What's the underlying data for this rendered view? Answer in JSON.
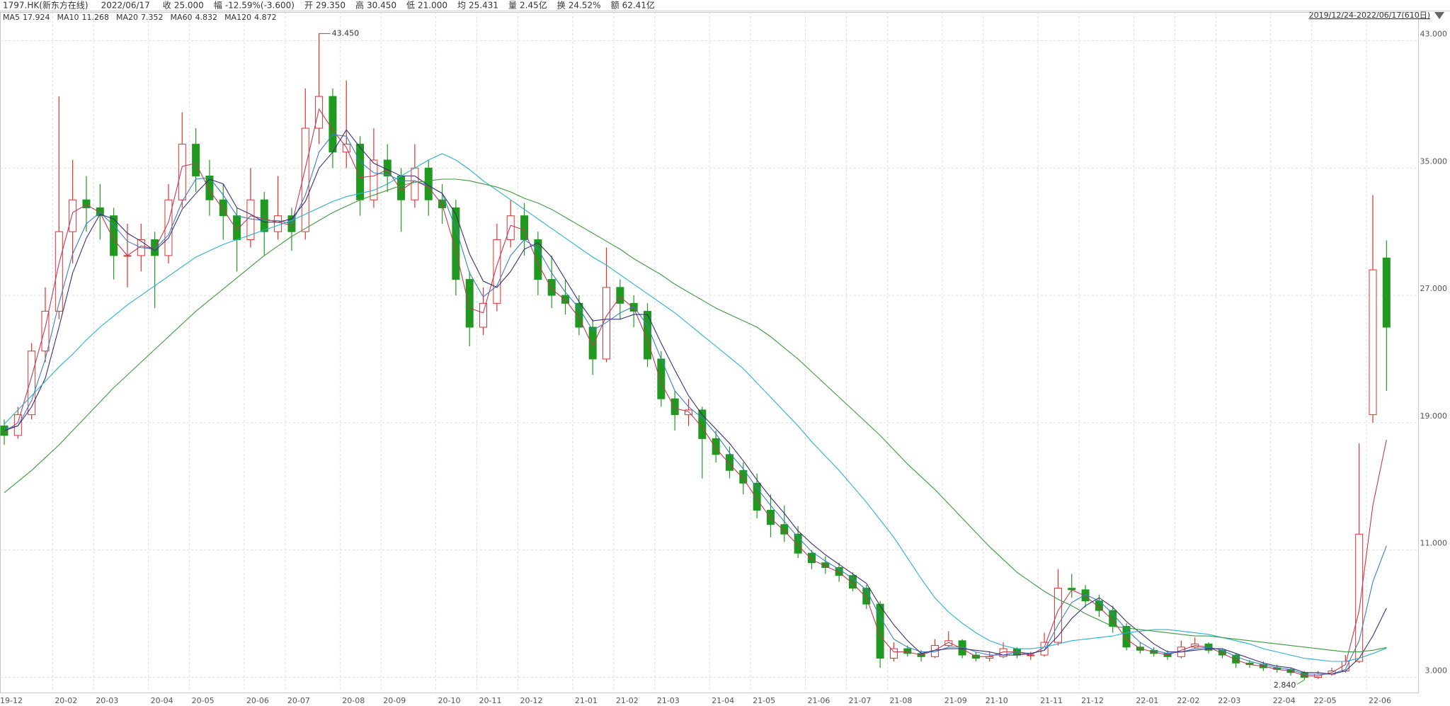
{
  "header": {
    "code": "1797.HK(新东方在线)",
    "date": "2022/06/17",
    "items": [
      {
        "label": "收",
        "value": "25.000",
        "color": "#1a9a1a"
      },
      {
        "label": "幅",
        "value": "-12.59%(-3.600)",
        "color": "#1a9a1a"
      },
      {
        "label": "开",
        "value": "29.350",
        "color": "#d0302a"
      },
      {
        "label": "高",
        "value": "30.450",
        "color": "#d0302a"
      },
      {
        "label": "低",
        "value": "21.000",
        "color": "#1a9a1a"
      },
      {
        "label": "均",
        "value": "25.431",
        "color": "#1a9a1a"
      },
      {
        "label": "量",
        "value": "2.45亿",
        "color": "#333333"
      },
      {
        "label": "换",
        "value": "24.52%",
        "color": "#333333"
      },
      {
        "label": "额",
        "value": "62.41亿",
        "color": "#333333"
      }
    ],
    "range": "2019/12/24-2022/06/17(610日)"
  },
  "chart_data": {
    "type": "candlestick",
    "up_color": "#e0302c",
    "down_color": "#1f9a1f",
    "grid": true,
    "ylim": [
      2,
      44.8
    ],
    "yticks": [
      {
        "value": 3,
        "label": "3.000"
      },
      {
        "value": 11,
        "label": "11.000"
      },
      {
        "value": 19,
        "label": "19.000"
      },
      {
        "value": 27,
        "label": "27.000"
      },
      {
        "value": 35,
        "label": "35.000"
      },
      {
        "value": 43,
        "label": "43.000"
      }
    ],
    "x": [
      "19-12",
      null,
      null,
      null,
      "20-02",
      null,
      null,
      "20-03",
      null,
      null,
      null,
      "20-04",
      null,
      null,
      "20-05",
      null,
      null,
      null,
      "20-06",
      null,
      null,
      "20-07",
      null,
      null,
      null,
      "20-08",
      null,
      null,
      "20-09",
      null,
      null,
      null,
      "20-10",
      null,
      null,
      "20-11",
      null,
      null,
      "20-12",
      null,
      null,
      null,
      "21-01",
      null,
      null,
      "21-02",
      null,
      null,
      "21-03",
      null,
      null,
      null,
      "21-04",
      null,
      null,
      "21-05",
      null,
      null,
      null,
      "21-06",
      null,
      null,
      "21-07",
      null,
      null,
      "21-08",
      null,
      null,
      null,
      "21-09",
      null,
      null,
      "21-10",
      null,
      null,
      null,
      "21-11",
      null,
      null,
      "21-12",
      null,
      null,
      null,
      "22-01",
      null,
      null,
      "22-02",
      null,
      null,
      "22-03",
      null,
      null,
      null,
      "22-04",
      null,
      null,
      "22-05",
      null,
      null,
      null,
      "22-06",
      null
    ],
    "ohlc": [
      [
        18.8,
        19.2,
        17.6,
        18.2
      ],
      [
        18.2,
        20.0,
        18.0,
        19.5
      ],
      [
        19.5,
        24.0,
        19.2,
        23.5
      ],
      [
        23.5,
        27.5,
        22.8,
        26.0
      ],
      [
        26.0,
        39.5,
        25.5,
        31.0
      ],
      [
        31.0,
        35.5,
        29.0,
        33.0
      ],
      [
        33.0,
        34.5,
        31.0,
        32.5
      ],
      [
        32.5,
        34.0,
        30.5,
        32.0
      ],
      [
        32.0,
        32.5,
        28.0,
        29.5
      ],
      [
        29.5,
        31.5,
        27.5,
        29.5
      ],
      [
        29.5,
        31.5,
        28.5,
        30.5
      ],
      [
        30.5,
        31.0,
        26.2,
        29.5
      ],
      [
        29.5,
        34.0,
        29.0,
        33.0
      ],
      [
        33.0,
        38.5,
        32.5,
        36.5
      ],
      [
        36.5,
        37.5,
        33.5,
        34.5
      ],
      [
        34.5,
        35.5,
        32.0,
        33.0
      ],
      [
        33.0,
        34.0,
        30.5,
        32.0
      ],
      [
        32.0,
        32.5,
        28.5,
        30.5
      ],
      [
        30.5,
        35.0,
        30.0,
        33.0
      ],
      [
        33.0,
        33.5,
        29.5,
        31.0
      ],
      [
        31.0,
        34.5,
        30.5,
        32.0
      ],
      [
        32.0,
        32.5,
        29.8,
        31.0
      ],
      [
        31.0,
        40.0,
        30.5,
        37.5
      ],
      [
        37.5,
        43.45,
        36.5,
        39.5
      ],
      [
        39.5,
        40.0,
        35.0,
        36.0
      ],
      [
        36.0,
        40.5,
        35.0,
        36.5
      ],
      [
        36.5,
        37.0,
        32.0,
        33.0
      ],
      [
        33.0,
        37.5,
        32.5,
        35.5
      ],
      [
        35.5,
        36.5,
        33.5,
        34.5
      ],
      [
        34.5,
        35.0,
        31.0,
        33.0
      ],
      [
        33.0,
        36.5,
        32.5,
        35.0
      ],
      [
        35.0,
        35.5,
        32.0,
        33.0
      ],
      [
        33.0,
        34.0,
        31.5,
        32.5
      ],
      [
        32.5,
        33.0,
        27.0,
        28.0
      ],
      [
        28.0,
        28.5,
        23.8,
        25.0
      ],
      [
        25.0,
        27.5,
        24.5,
        26.5
      ],
      [
        26.5,
        31.5,
        26.0,
        30.5
      ],
      [
        30.5,
        33.0,
        30.0,
        32.0
      ],
      [
        32.0,
        32.8,
        29.5,
        30.5
      ],
      [
        30.5,
        31.0,
        27.0,
        28.0
      ],
      [
        28.0,
        29.5,
        26.2,
        27.0
      ],
      [
        27.0,
        28.0,
        25.8,
        26.5
      ],
      [
        26.5,
        27.0,
        24.5,
        25.0
      ],
      [
        25.0,
        25.5,
        22.0,
        23.0
      ],
      [
        23.0,
        30.0,
        22.8,
        27.5
      ],
      [
        27.5,
        28.0,
        25.5,
        26.5
      ],
      [
        26.5,
        27.0,
        25.0,
        26.0
      ],
      [
        26.0,
        26.5,
        22.5,
        23.0
      ],
      [
        23.0,
        23.5,
        20.0,
        20.5
      ],
      [
        20.5,
        21.0,
        18.5,
        19.5
      ],
      [
        19.5,
        20.5,
        18.8,
        19.8
      ],
      [
        19.8,
        20.0,
        15.5,
        18.0
      ],
      [
        18.0,
        18.5,
        16.5,
        17.0
      ],
      [
        17.0,
        17.5,
        15.5,
        16.0
      ],
      [
        16.0,
        16.5,
        14.5,
        15.2
      ],
      [
        15.2,
        15.8,
        13.0,
        13.5
      ],
      [
        13.5,
        14.5,
        11.8,
        12.6
      ],
      [
        12.6,
        13.8,
        11.5,
        12.0
      ],
      [
        12.0,
        12.5,
        10.5,
        10.8
      ],
      [
        10.8,
        11.0,
        9.8,
        10.2
      ],
      [
        10.2,
        10.6,
        9.5,
        9.9
      ],
      [
        9.9,
        10.2,
        9.0,
        9.4
      ],
      [
        9.4,
        9.6,
        8.4,
        8.6
      ],
      [
        8.6,
        8.8,
        7.3,
        7.6
      ],
      [
        7.6,
        7.8,
        3.6,
        4.2
      ],
      [
        4.2,
        5.2,
        4.0,
        4.8
      ],
      [
        4.8,
        5.0,
        4.3,
        4.5
      ],
      [
        4.5,
        4.7,
        4.0,
        4.3
      ],
      [
        4.3,
        5.4,
        4.2,
        5.0
      ],
      [
        5.0,
        5.9,
        4.9,
        5.3
      ],
      [
        5.3,
        5.4,
        4.2,
        4.4
      ],
      [
        4.4,
        4.6,
        4.0,
        4.2
      ],
      [
        4.2,
        4.6,
        4.0,
        4.3
      ],
      [
        4.3,
        5.2,
        4.2,
        4.8
      ],
      [
        4.8,
        4.9,
        4.2,
        4.4
      ],
      [
        4.4,
        4.6,
        4.1,
        4.4
      ],
      [
        4.4,
        5.8,
        4.3,
        5.2
      ],
      [
        5.2,
        9.8,
        5.0,
        8.6
      ],
      [
        8.6,
        9.5,
        8.0,
        8.5
      ],
      [
        8.5,
        8.8,
        7.4,
        7.8
      ],
      [
        7.8,
        8.2,
        6.8,
        7.2
      ],
      [
        7.2,
        7.5,
        5.8,
        6.2
      ],
      [
        6.2,
        6.4,
        4.7,
        4.9
      ],
      [
        4.9,
        5.2,
        4.5,
        4.7
      ],
      [
        4.7,
        4.9,
        4.3,
        4.5
      ],
      [
        4.5,
        4.7,
        4.1,
        4.3
      ],
      [
        4.3,
        5.3,
        4.2,
        4.9
      ],
      [
        4.9,
        5.5,
        4.8,
        5.1
      ],
      [
        5.1,
        5.2,
        4.5,
        4.7
      ],
      [
        4.7,
        4.8,
        4.2,
        4.4
      ],
      [
        4.4,
        4.5,
        3.6,
        3.9
      ],
      [
        3.9,
        4.1,
        3.6,
        3.8
      ],
      [
        3.8,
        4.0,
        3.4,
        3.6
      ],
      [
        3.6,
        3.8,
        3.3,
        3.5
      ],
      [
        3.5,
        3.6,
        3.1,
        3.3
      ],
      [
        3.3,
        3.4,
        2.84,
        3.0
      ],
      [
        3.0,
        3.4,
        2.9,
        3.2
      ],
      [
        3.2,
        3.6,
        3.1,
        3.4
      ],
      [
        3.4,
        4.4,
        3.3,
        4.0
      ],
      [
        4.0,
        17.7,
        3.9,
        12.0
      ],
      [
        19.5,
        33.3,
        19.0,
        28.6
      ],
      [
        29.35,
        30.45,
        21.0,
        25.0
      ]
    ],
    "series": [
      {
        "name": "MA5",
        "color": "#c23a5a",
        "values": [
          18.4,
          19.0,
          21.9,
          25.0,
          29.0,
          32.2,
          32.7,
          32.2,
          30.5,
          29.5,
          30.1,
          29.9,
          31.6,
          35.1,
          35.3,
          33.6,
          32.4,
          31.1,
          32.0,
          31.8,
          31.6,
          31.4,
          35.0,
          38.7,
          37.4,
          36.3,
          34.4,
          34.5,
          34.9,
          33.6,
          34.2,
          33.8,
          32.7,
          29.8,
          26.2,
          25.9,
          28.9,
          31.4,
          31.1,
          29.0,
          27.4,
          26.7,
          25.6,
          23.8,
          25.7,
          26.9,
          26.2,
          24.2,
          21.5,
          19.9,
          19.7,
          18.7,
          17.4,
          16.4,
          15.5,
          14.2,
          13.0,
          12.2,
          11.3,
          10.4,
          10.0,
          9.6,
          8.9,
          8.0,
          5.6,
          4.6,
          4.6,
          4.4,
          4.7,
          5.2,
          4.8,
          4.3,
          4.3,
          4.6,
          4.6,
          4.4,
          4.9,
          7.2,
          8.5,
          8.1,
          7.4,
          6.6,
          5.4,
          4.8,
          4.6,
          4.4,
          4.7,
          5.0,
          4.9,
          4.5,
          4.1,
          3.8,
          3.7,
          3.5,
          3.4,
          3.1,
          3.1,
          3.3,
          3.8,
          7.2,
          13.8,
          17.924
        ]
      },
      {
        "name": "MA10",
        "color": "#3b7fc8",
        "values": [
          18.6,
          18.8,
          20.4,
          23.0,
          26.5,
          29.6,
          31.5,
          32.2,
          31.4,
          30.4,
          30.0,
          29.9,
          30.8,
          32.9,
          34.3,
          34.4,
          33.3,
          32.0,
          31.8,
          31.7,
          31.7,
          31.5,
          33.3,
          36.0,
          37.1,
          37.0,
          35.4,
          34.7,
          34.6,
          34.2,
          34.2,
          33.9,
          33.4,
          31.2,
          28.4,
          26.9,
          27.6,
          29.5,
          30.5,
          29.9,
          28.4,
          27.2,
          26.2,
          24.8,
          25.3,
          25.9,
          26.3,
          25.1,
          23.0,
          21.0,
          20.0,
          19.3,
          18.3,
          17.1,
          16.1,
          14.9,
          13.8,
          12.8,
          11.8,
          10.9,
          10.3,
          9.8,
          9.2,
          8.5,
          6.8,
          5.4,
          4.9,
          4.6,
          4.6,
          4.9,
          4.9,
          4.6,
          4.4,
          4.4,
          4.6,
          4.5,
          4.7,
          6.3,
          7.7,
          8.2,
          7.8,
          7.0,
          6.0,
          5.2,
          4.7,
          4.5,
          4.6,
          4.8,
          4.9,
          4.7,
          4.3,
          4.0,
          3.8,
          3.6,
          3.5,
          3.2,
          3.2,
          3.2,
          3.5,
          5.3,
          9.0,
          11.268
        ]
      },
      {
        "name": "MA20",
        "color": "#3a2f7a",
        "values": [
          18.5,
          18.8,
          20.0,
          21.8,
          25.0,
          28.4,
          30.6,
          32.1,
          31.8,
          30.9,
          30.4,
          29.8,
          30.6,
          32.4,
          33.4,
          34.3,
          34.0,
          32.5,
          32.1,
          31.6,
          31.6,
          31.8,
          32.9,
          35.0,
          36.0,
          37.4,
          36.3,
          35.3,
          34.9,
          34.5,
          34.5,
          33.9,
          33.4,
          32.1,
          29.6,
          27.9,
          27.5,
          28.5,
          29.9,
          30.3,
          29.4,
          28.0,
          26.6,
          25.4,
          25.5,
          25.5,
          25.8,
          25.8,
          24.0,
          22.3,
          20.7,
          19.5,
          18.6,
          17.7,
          16.6,
          15.4,
          14.3,
          13.3,
          12.2,
          11.4,
          10.7,
          10.1,
          9.5,
          8.9,
          7.5,
          6.3,
          5.3,
          4.5,
          4.7,
          4.8,
          4.8,
          4.7,
          4.6,
          4.4,
          4.4,
          4.5,
          4.7,
          5.6,
          6.7,
          7.5,
          8.0,
          7.4,
          6.5,
          5.8,
          5.1,
          4.6,
          4.6,
          4.7,
          4.8,
          4.8,
          4.5,
          4.2,
          3.9,
          3.7,
          3.6,
          3.3,
          3.3,
          3.2,
          3.4,
          4.2,
          5.6,
          7.352
        ]
      },
      {
        "name": "MA60",
        "color": "#2ab0d2",
        "values": [
          18.9,
          19.8,
          20.7,
          21.6,
          22.5,
          23.3,
          24.2,
          25.0,
          25.7,
          26.4,
          27.0,
          27.6,
          28.2,
          28.8,
          29.4,
          29.8,
          30.2,
          30.5,
          30.8,
          31.1,
          31.4,
          31.7,
          32.1,
          32.5,
          32.9,
          33.2,
          33.4,
          33.6,
          34.0,
          34.5,
          35.0,
          35.5,
          35.9,
          35.5,
          34.9,
          34.2,
          33.6,
          33.0,
          32.4,
          31.8,
          31.2,
          30.6,
          30.0,
          29.4,
          28.9,
          28.3,
          27.7,
          27.1,
          26.5,
          25.9,
          25.2,
          24.5,
          23.8,
          23.1,
          22.4,
          21.5,
          20.6,
          19.7,
          18.8,
          17.8,
          16.9,
          16.0,
          15.0,
          14.0,
          12.9,
          11.8,
          10.5,
          9.2,
          8.0,
          7.1,
          6.4,
          5.8,
          5.3,
          5.0,
          4.8,
          4.8,
          4.9,
          5.1,
          5.3,
          5.4,
          5.5,
          5.6,
          5.8,
          5.9,
          6.0,
          6.0,
          5.9,
          5.8,
          5.7,
          5.5,
          5.3,
          5.1,
          4.8,
          4.6,
          4.4,
          4.2,
          4.1,
          4.0,
          4.0,
          4.2,
          4.5,
          4.832
        ]
      },
      {
        "name": "MA120",
        "color": "#3d9a3d",
        "values": [
          14.6,
          15.3,
          16.0,
          16.8,
          17.6,
          18.5,
          19.4,
          20.3,
          21.2,
          22.0,
          22.8,
          23.6,
          24.4,
          25.2,
          26.0,
          26.7,
          27.4,
          28.1,
          28.8,
          29.5,
          30.1,
          30.7,
          31.2,
          31.7,
          32.2,
          32.6,
          33.0,
          33.3,
          33.6,
          33.9,
          34.1,
          34.2,
          34.3,
          34.3,
          34.2,
          34.0,
          33.8,
          33.5,
          33.1,
          32.8,
          32.4,
          31.9,
          31.4,
          30.9,
          30.4,
          29.9,
          29.3,
          28.8,
          28.3,
          27.7,
          27.2,
          26.7,
          26.2,
          25.8,
          25.4,
          25.0,
          24.4,
          23.7,
          23.0,
          22.2,
          21.4,
          20.6,
          19.8,
          19.0,
          18.2,
          17.3,
          16.4,
          15.6,
          14.8,
          13.9,
          13.0,
          12.1,
          11.2,
          10.4,
          9.6,
          9.0,
          8.4,
          7.9,
          7.5,
          7.0,
          6.6,
          6.2,
          6.1,
          6.0,
          5.9,
          5.8,
          5.7,
          5.6,
          5.6,
          5.5,
          5.4,
          5.3,
          5.2,
          5.1,
          5.0,
          4.9,
          4.8,
          4.7,
          4.6,
          4.6,
          4.7,
          4.872
        ]
      }
    ],
    "annotations": [
      {
        "value": 43.45,
        "label": "43.450",
        "color": "#c0392b"
      },
      {
        "value": 2.84,
        "label": "2.840",
        "color": "#1f9a1f"
      }
    ]
  }
}
